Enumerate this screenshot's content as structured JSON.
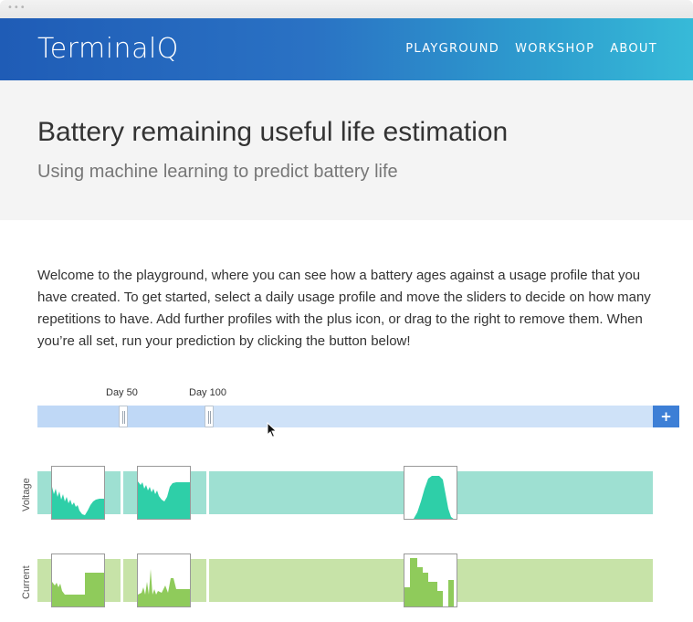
{
  "window": {
    "dots": "•••"
  },
  "header": {
    "brand": "TerminalQ",
    "nav": [
      "PLAYGROUND",
      "WORKSHOP",
      "ABOUT"
    ]
  },
  "hero": {
    "title": "Battery remaining useful life estimation",
    "subtitle": "Using machine learning to predict battery life"
  },
  "intro": "Welcome to the playground, where you can see how a battery ages against a usage profile that you have created. To get started, select a daily usage profile and move the sliders to decide on how many repetitions to have. Add further profiles with the plus icon, or drag to the right to remove them. When you’re all set, run your prediction by clicking the button below!",
  "timeline": {
    "markers": [
      "Day 50",
      "Day 100"
    ],
    "add_button": "+"
  },
  "rows": {
    "voltage_label": "Voltage",
    "current_label": "Current"
  },
  "colors": {
    "header_start": "#1f5cb6",
    "header_end": "#37bad8",
    "voltage_band": "#9ee0d2",
    "voltage_fill": "#2ecfa8",
    "current_band": "#c7e3a8",
    "current_fill": "#8fcb5b",
    "add_button": "#3d7fd6"
  },
  "icons": {
    "add": "plus-icon",
    "pointer": "mouse-cursor-icon"
  }
}
